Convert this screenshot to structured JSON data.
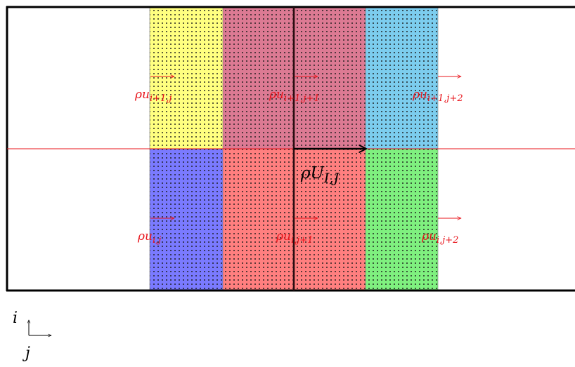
{
  "colors": {
    "cell_i1_j0": "#ffff80",
    "cell_i1_j1": "#dc7a93",
    "cell_i1_j2": "#7ccdee",
    "cell_i0_j0": "#7a7aff",
    "cell_i0_j1": "#ff7f7f",
    "cell_i0_j2": "#7ff07f",
    "vector_red": "#e8141b",
    "vector_black": "#000000",
    "dots": "#1a1a1a"
  },
  "vectors": {
    "i1_j0": {
      "base": "ρu",
      "sub": "i+1,j"
    },
    "i1_j1": {
      "base": "ρu",
      "sub": "i+1,j+1"
    },
    "i1_j2": {
      "base": "ρu",
      "sub": "i+1,j+2"
    },
    "i0_j0": {
      "base": "ρu",
      "sub": "i,j"
    },
    "i0_j1": {
      "base": "ρu",
      "sub": "i,j+1"
    },
    "i0_j2": {
      "base": "ρu",
      "sub": "i,j+2"
    },
    "main": {
      "base": "ρU",
      "sub": "I,J"
    }
  },
  "axes": {
    "vertical_label": "i",
    "horizontal_label": "j"
  }
}
